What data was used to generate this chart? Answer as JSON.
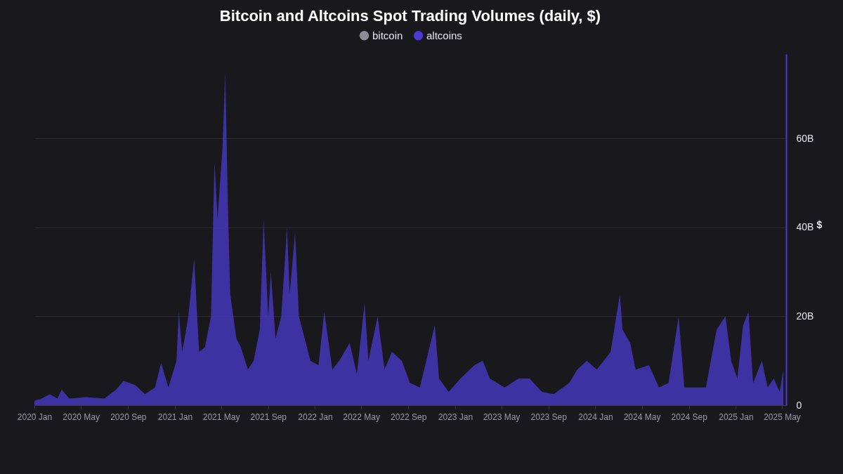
{
  "chart_data": {
    "type": "area",
    "title": "Bitcoin and Altcoins Spot Trading Volumes (daily, $)",
    "ylabel": "$",
    "x": [
      "2020-01-01",
      "2020-01-20",
      "2020-02-10",
      "2020-03-01",
      "2020-03-12",
      "2020-04-01",
      "2020-05-15",
      "2020-07-01",
      "2020-08-01",
      "2020-08-20",
      "2020-09-20",
      "2020-10-15",
      "2020-11-10",
      "2020-11-26",
      "2020-12-15",
      "2021-01-05",
      "2021-01-11",
      "2021-01-20",
      "2021-02-05",
      "2021-02-20",
      "2021-03-05",
      "2021-03-20",
      "2021-04-05",
      "2021-04-14",
      "2021-04-22",
      "2021-05-05",
      "2021-05-12",
      "2021-05-19",
      "2021-05-25",
      "2021-06-10",
      "2021-06-22",
      "2021-07-10",
      "2021-07-25",
      "2021-08-10",
      "2021-08-20",
      "2021-09-01",
      "2021-09-08",
      "2021-09-20",
      "2021-10-05",
      "2021-10-20",
      "2021-10-27",
      "2021-11-10",
      "2021-11-20",
      "2021-12-05",
      "2021-12-20",
      "2022-01-10",
      "2022-01-25",
      "2022-02-15",
      "2022-03-05",
      "2022-04-01",
      "2022-04-20",
      "2022-05-10",
      "2022-05-20",
      "2022-06-13",
      "2022-07-01",
      "2022-07-20",
      "2022-08-15",
      "2022-09-05",
      "2022-10-01",
      "2022-11-09",
      "2022-11-20",
      "2022-12-15",
      "2023-01-15",
      "2023-02-20",
      "2023-03-14",
      "2023-04-01",
      "2023-05-10",
      "2023-06-15",
      "2023-07-14",
      "2023-08-15",
      "2023-09-15",
      "2023-10-25",
      "2023-11-15",
      "2023-12-10",
      "2024-01-05",
      "2024-02-10",
      "2024-03-05",
      "2024-03-12",
      "2024-04-01",
      "2024-04-15",
      "2024-05-20",
      "2024-06-15",
      "2024-07-10",
      "2024-08-05",
      "2024-08-20",
      "2024-10-15",
      "2024-11-12",
      "2024-12-05",
      "2024-12-20",
      "2025-01-05",
      "2025-01-20",
      "2025-02-03",
      "2025-02-15",
      "2025-03-10",
      "2025-03-25",
      "2025-04-10",
      "2025-04-25",
      "2025-05-05"
    ],
    "series": [
      {
        "name": "bitcoin",
        "color": "#8e8b99",
        "values": [
          null,
          null,
          null,
          null,
          null,
          null,
          null,
          null,
          null,
          null,
          null,
          null,
          null,
          null,
          null,
          null,
          null,
          null,
          null,
          null,
          null,
          null,
          null,
          null,
          null,
          null,
          null,
          null,
          null,
          null,
          null,
          null,
          null,
          null,
          null,
          null,
          null,
          null,
          null,
          null,
          null,
          null,
          null,
          null,
          null,
          null,
          null,
          null,
          null,
          null,
          null,
          null,
          null,
          null,
          null,
          null,
          null,
          null,
          null,
          null,
          null,
          null,
          null,
          null,
          null,
          null,
          null,
          null,
          null,
          null,
          null,
          null,
          null,
          null,
          null,
          null,
          null,
          null,
          null,
          null,
          null,
          null,
          null,
          null,
          null,
          null,
          null,
          null,
          null,
          null,
          null,
          null,
          null,
          null,
          null,
          null,
          null,
          null
        ]
      },
      {
        "name": "altcoins",
        "color": "#4b3bcf",
        "values": [
          1,
          1.5,
          2.5,
          1.5,
          3.5,
          1.5,
          1.8,
          1.5,
          3.5,
          5.5,
          4.5,
          2.5,
          4,
          9.5,
          4,
          10,
          21,
          12,
          20,
          33,
          12,
          13,
          20,
          55,
          42,
          58,
          75,
          45,
          25,
          15,
          13,
          8,
          10,
          17,
          42,
          20,
          30,
          15,
          20,
          40,
          25,
          39,
          20,
          15,
          10,
          9,
          21,
          8,
          10,
          14,
          7,
          23,
          10,
          20,
          8,
          12,
          10,
          5,
          4,
          18,
          6,
          3,
          6,
          9,
          10,
          6,
          4,
          6,
          6,
          3,
          2.5,
          5,
          8,
          10,
          8,
          12,
          25,
          17,
          14,
          8,
          9,
          4,
          5,
          20,
          4,
          4,
          17,
          20,
          10,
          6,
          18,
          21,
          5,
          10,
          4,
          6,
          3,
          8
        ]
      }
    ],
    "xlim": [
      "2020-01-01",
      "2025-05-12"
    ],
    "xticks": [
      {
        "value": "2020-01-01",
        "label": "2020 Jan"
      },
      {
        "value": "2020-05-01",
        "label": "2020 May"
      },
      {
        "value": "2020-09-01",
        "label": "2020 Sep"
      },
      {
        "value": "2021-01-01",
        "label": "2021 Jan"
      },
      {
        "value": "2021-05-01",
        "label": "2021 May"
      },
      {
        "value": "2021-09-01",
        "label": "2021 Sep"
      },
      {
        "value": "2022-01-01",
        "label": "2022 Jan"
      },
      {
        "value": "2022-05-01",
        "label": "2022 May"
      },
      {
        "value": "2022-09-01",
        "label": "2022 Sep"
      },
      {
        "value": "2023-01-01",
        "label": "2023 Jan"
      },
      {
        "value": "2023-05-01",
        "label": "2023 May"
      },
      {
        "value": "2023-09-01",
        "label": "2023 Sep"
      },
      {
        "value": "2024-01-01",
        "label": "2024 Jan"
      },
      {
        "value": "2024-05-01",
        "label": "2024 May"
      },
      {
        "value": "2024-09-01",
        "label": "2024 Sep"
      },
      {
        "value": "2025-01-01",
        "label": "2025 Jan"
      },
      {
        "value": "2025-05-01",
        "label": "2025 May"
      }
    ],
    "ylim": [
      0,
      79
    ],
    "yticks": [
      0,
      {
        "value": 20,
        "label": "20B"
      },
      {
        "value": 40,
        "label": "40B"
      },
      {
        "value": 60,
        "label": "60B"
      }
    ],
    "grid": "y",
    "legend": "top"
  }
}
